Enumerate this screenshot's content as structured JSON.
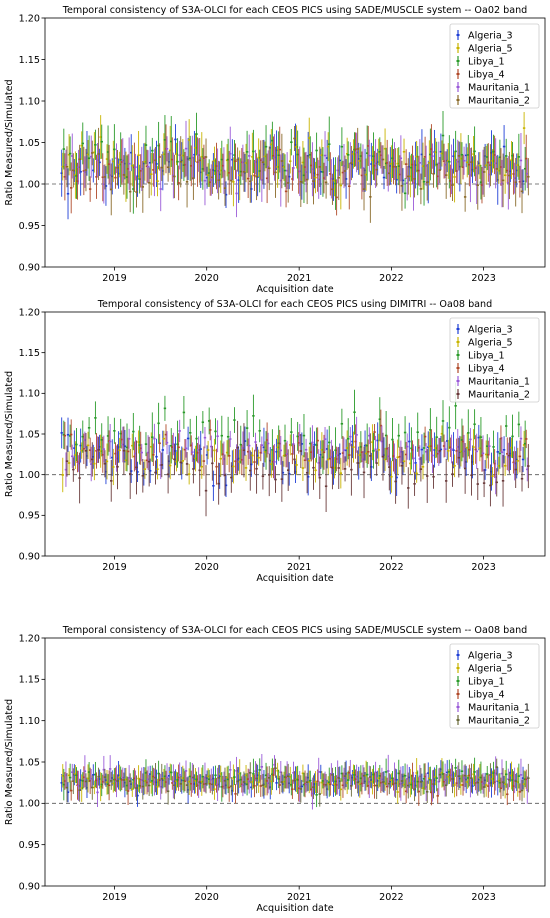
{
  "chart_data": [
    {
      "type": "scatter",
      "title": "Temporal consistency of S3A-OLCI for each CEOS PICS using SADE/MUSCLE system -- Oa02 band",
      "xlabel": "Acquisition date",
      "ylabel": "Ratio Measured/Simulated",
      "xlim": [
        "2018-04-01",
        "2023-09-01"
      ],
      "ylim": [
        0.9,
        1.2
      ],
      "yticks": [
        "0.90",
        "0.95",
        "1.00",
        "1.05",
        "1.10",
        "1.15",
        "1.20"
      ],
      "xticks": [
        "2019",
        "2020",
        "2021",
        "2022",
        "2023"
      ],
      "reference_line": 1.0,
      "date_range": [
        "2018-06-15",
        "2023-06-15"
      ],
      "grid": false,
      "legend_position": "top-right",
      "series": [
        {
          "name": "Algeria_3",
          "color": "#1f3fd6",
          "mean": 1.02,
          "spread": 0.014,
          "err": 0.022
        },
        {
          "name": "Algeria_5",
          "color": "#c8b400",
          "mean": 1.025,
          "spread": 0.013,
          "err": 0.022
        },
        {
          "name": "Libya_1",
          "color": "#2a9a2a",
          "mean": 1.03,
          "spread": 0.014,
          "err": 0.024
        },
        {
          "name": "Libya_4",
          "color": "#b04a2a",
          "mean": 1.018,
          "spread": 0.013,
          "err": 0.022
        },
        {
          "name": "Mauritania_1",
          "color": "#9a5ad8",
          "mean": 1.022,
          "spread": 0.014,
          "err": 0.024
        },
        {
          "name": "Mauritania_2",
          "color": "#8a6a2a",
          "mean": 1.012,
          "spread": 0.014,
          "err": 0.024
        }
      ]
    },
    {
      "type": "scatter",
      "title": "Temporal consistency of S3A-OLCI for each CEOS PICS using DIMITRI -- Oa08 band",
      "xlabel": "Acquisition date",
      "ylabel": "Ratio Measured/Simulated",
      "xlim": [
        "2018-04-01",
        "2023-09-01"
      ],
      "ylim": [
        0.9,
        1.2
      ],
      "yticks": [
        "0.90",
        "0.95",
        "1.00",
        "1.05",
        "1.10",
        "1.15",
        "1.20"
      ],
      "xticks": [
        "2019",
        "2020",
        "2021",
        "2022",
        "2023"
      ],
      "reference_line": 1.0,
      "date_range": [
        "2018-06-15",
        "2023-06-15"
      ],
      "grid": false,
      "legend_position": "top-right",
      "series": [
        {
          "name": "Algeria_3",
          "color": "#1f3fd6",
          "mean": 1.02,
          "spread": 0.012,
          "err": 0.018
        },
        {
          "name": "Algeria_5",
          "color": "#c8b400",
          "mean": 1.022,
          "spread": 0.011,
          "err": 0.016
        },
        {
          "name": "Libya_1",
          "color": "#2a9a2a",
          "mean": 1.048,
          "spread": 0.014,
          "err": 0.022
        },
        {
          "name": "Libya_4",
          "color": "#b04a2a",
          "mean": 1.03,
          "spread": 0.01,
          "err": 0.016
        },
        {
          "name": "Mauritania_1",
          "color": "#9a5ad8",
          "mean": 1.03,
          "spread": 0.011,
          "err": 0.016
        },
        {
          "name": "Mauritania_2",
          "color": "#6a3a3a",
          "mean": 1.005,
          "spread": 0.012,
          "err": 0.024
        }
      ]
    },
    {
      "type": "scatter",
      "title": "Temporal consistency of S3A-OLCI for each CEOS PICS using SADE/MUSCLE system -- Oa08 band",
      "xlabel": "Acquisition date",
      "ylabel": "Ratio Measured/Simulated",
      "xlim": [
        "2018-04-01",
        "2023-09-01"
      ],
      "ylim": [
        0.9,
        1.2
      ],
      "yticks": [
        "0.90",
        "0.95",
        "1.00",
        "1.05",
        "1.10",
        "1.15",
        "1.20"
      ],
      "xticks": [
        "2019",
        "2020",
        "2021",
        "2022",
        "2023"
      ],
      "reference_line": 1.0,
      "date_range": [
        "2018-06-15",
        "2023-06-15"
      ],
      "grid": false,
      "legend_position": "top-right",
      "series": [
        {
          "name": "Algeria_3",
          "color": "#1f3fd6",
          "mean": 1.025,
          "spread": 0.006,
          "err": 0.013
        },
        {
          "name": "Algeria_5",
          "color": "#c8b400",
          "mean": 1.027,
          "spread": 0.006,
          "err": 0.013
        },
        {
          "name": "Libya_1",
          "color": "#2a9a2a",
          "mean": 1.03,
          "spread": 0.006,
          "err": 0.014
        },
        {
          "name": "Libya_4",
          "color": "#b04a2a",
          "mean": 1.024,
          "spread": 0.006,
          "err": 0.013
        },
        {
          "name": "Mauritania_1",
          "color": "#9a5ad8",
          "mean": 1.03,
          "spread": 0.007,
          "err": 0.015
        },
        {
          "name": "Mauritania_2",
          "color": "#6a6a3a",
          "mean": 1.026,
          "spread": 0.006,
          "err": 0.013
        }
      ]
    }
  ]
}
